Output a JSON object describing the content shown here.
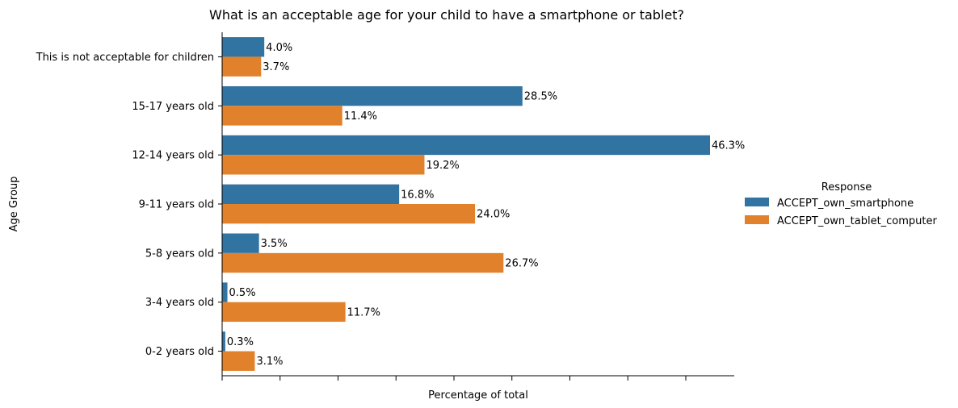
{
  "chart_data": {
    "type": "bar",
    "orientation": "horizontal",
    "title": "What is an acceptable age for your child to have a smartphone or tablet?",
    "xlabel": "Percentage of total",
    "ylabel": "Age Group",
    "categories": [
      "This is not acceptable for children",
      "15-17 years old",
      "12-14 years old",
      "9-11 years old",
      "5-8 years old",
      "3-4 years old",
      "0-2 years old"
    ],
    "series": [
      {
        "name": "ACCEPT_own_smartphone",
        "color": "#3274a1",
        "values": [
          4.0,
          28.5,
          46.3,
          16.8,
          3.5,
          0.5,
          0.3
        ],
        "labels": [
          "4.0%",
          "28.5%",
          "46.3%",
          "16.8%",
          "3.5%",
          "0.5%",
          "0.3%"
        ]
      },
      {
        "name": "ACCEPT_own_tablet_computer",
        "color": "#e1812c",
        "values": [
          3.7,
          11.4,
          19.2,
          24.0,
          26.7,
          11.7,
          3.1
        ],
        "labels": [
          "3.7%",
          "11.4%",
          "19.2%",
          "24.0%",
          "26.7%",
          "11.7%",
          "3.1%"
        ]
      }
    ],
    "xlim": [
      0,
      48.6
    ],
    "xticks": [
      0,
      5.5,
      11,
      16.5,
      22,
      27.5,
      33,
      38.5,
      44
    ],
    "xtick_labels_shown": false,
    "grid": false,
    "legend": {
      "title": "Response",
      "placement": "right"
    }
  }
}
